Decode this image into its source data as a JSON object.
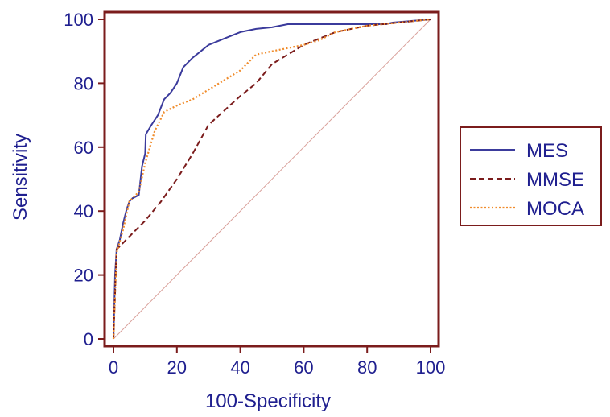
{
  "chart_data": {
    "type": "line",
    "xlabel": "100-Specificity",
    "ylabel": "Sensitivity",
    "xlim": [
      0,
      100
    ],
    "ylim": [
      0,
      100
    ],
    "xticks": [
      0,
      20,
      40,
      60,
      80,
      100
    ],
    "yticks": [
      0,
      20,
      40,
      60,
      80,
      100
    ],
    "grid": false,
    "legend_position": "right",
    "axis_color": "#7b1c1c",
    "text_color": "#1f1f8f",
    "reference_line": {
      "from": [
        0,
        0
      ],
      "to": [
        100,
        100
      ],
      "color": "#d9a09a"
    },
    "series": [
      {
        "name": "MES",
        "color": "#3b3b9c",
        "dash": "solid",
        "points": [
          [
            0,
            0
          ],
          [
            0.5,
            20
          ],
          [
            1,
            28
          ],
          [
            2,
            31
          ],
          [
            3,
            36
          ],
          [
            4,
            40
          ],
          [
            5,
            43
          ],
          [
            6,
            44
          ],
          [
            8,
            45
          ],
          [
            9,
            54
          ],
          [
            10,
            58
          ],
          [
            10.2,
            64
          ],
          [
            12,
            67
          ],
          [
            14,
            70
          ],
          [
            16,
            75
          ],
          [
            18,
            77
          ],
          [
            20,
            80
          ],
          [
            22,
            85
          ],
          [
            25,
            88
          ],
          [
            30,
            92
          ],
          [
            35,
            94
          ],
          [
            40,
            96
          ],
          [
            45,
            97
          ],
          [
            50,
            97.5
          ],
          [
            55,
            98.5
          ],
          [
            60,
            98.5
          ],
          [
            65,
            98.5
          ],
          [
            70,
            98.5
          ],
          [
            80,
            98.5
          ],
          [
            86,
            98.5
          ],
          [
            88,
            99
          ],
          [
            100,
            100
          ]
        ]
      },
      {
        "name": "MMSE",
        "color": "#7b1c1c",
        "dash": "dashed",
        "points": [
          [
            0,
            0
          ],
          [
            1,
            28
          ],
          [
            3,
            30
          ],
          [
            6,
            33
          ],
          [
            10,
            37
          ],
          [
            15,
            43
          ],
          [
            20,
            50
          ],
          [
            25,
            58
          ],
          [
            30,
            67
          ],
          [
            40,
            76
          ],
          [
            45,
            80
          ],
          [
            50,
            86
          ],
          [
            55,
            89
          ],
          [
            60,
            92
          ],
          [
            65,
            94
          ],
          [
            70,
            96
          ],
          [
            75,
            97
          ],
          [
            80,
            98
          ],
          [
            85,
            98.5
          ],
          [
            90,
            99
          ],
          [
            95,
            99.5
          ],
          [
            100,
            100
          ]
        ]
      },
      {
        "name": "MOCA",
        "color": "#f08c2c",
        "dash": "dotted",
        "points": [
          [
            0,
            0
          ],
          [
            1,
            27
          ],
          [
            3,
            34
          ],
          [
            5,
            43
          ],
          [
            8,
            46
          ],
          [
            10,
            55
          ],
          [
            13,
            65
          ],
          [
            16,
            71
          ],
          [
            20,
            73
          ],
          [
            25,
            75
          ],
          [
            30,
            78
          ],
          [
            35,
            81
          ],
          [
            40,
            84
          ],
          [
            45,
            89
          ],
          [
            50,
            90
          ],
          [
            55,
            91
          ],
          [
            60,
            92
          ],
          [
            65,
            93.5
          ],
          [
            70,
            96
          ],
          [
            75,
            97
          ],
          [
            80,
            98
          ],
          [
            85,
            98.5
          ],
          [
            90,
            99
          ],
          [
            95,
            99.5
          ],
          [
            100,
            100
          ]
        ]
      }
    ]
  }
}
